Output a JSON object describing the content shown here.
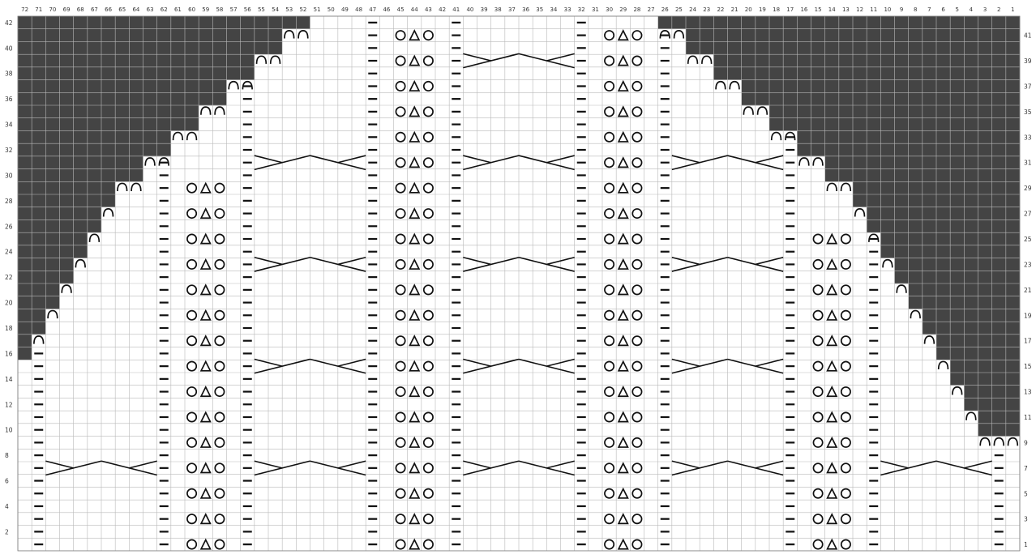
{
  "chart": {
    "columns": 72,
    "rows": 42,
    "column_numbers": [
      "72",
      "71",
      "70",
      "69",
      "68",
      "67",
      "66",
      "65",
      "64",
      "63",
      "62",
      "61",
      "60",
      "59",
      "58",
      "57",
      "56",
      "55",
      "54",
      "53",
      "52",
      "51",
      "50",
      "49",
      "48",
      "47",
      "46",
      "45",
      "44",
      "43",
      "42",
      "41",
      "40",
      "39",
      "38",
      "37",
      "36",
      "35",
      "34",
      "33",
      "32",
      "31",
      "30",
      "29",
      "28",
      "27",
      "26",
      "25",
      "24",
      "23",
      "22",
      "21",
      "20",
      "19",
      "18",
      "17",
      "16",
      "15",
      "14",
      "13",
      "12",
      "11",
      "10",
      "9",
      "8",
      "7",
      "6",
      "5",
      "4",
      "3",
      "2",
      "1"
    ],
    "left_row_numbers": [
      "42",
      "40",
      "38",
      "36",
      "34",
      "32",
      "30",
      "28",
      "26",
      "24",
      "22",
      "20",
      "18",
      "16",
      "14",
      "12",
      "10",
      "8",
      "6",
      "4",
      "2"
    ],
    "right_row_numbers": [
      "41",
      "39",
      "37",
      "35",
      "33",
      "31",
      "29",
      "27",
      "25",
      "23",
      "21",
      "19",
      "17",
      "15",
      "13",
      "11",
      "9",
      "7",
      "5",
      "3",
      "1"
    ],
    "colors": {
      "background": "#ffffff",
      "grid": "#b9b9b9",
      "dark_area": "#444444",
      "symbol": "#111111"
    },
    "symbol_names": [
      "purl-dash",
      "bobble-circle-triangle-circle",
      "cable-cross",
      "bind-off-arc"
    ]
  }
}
